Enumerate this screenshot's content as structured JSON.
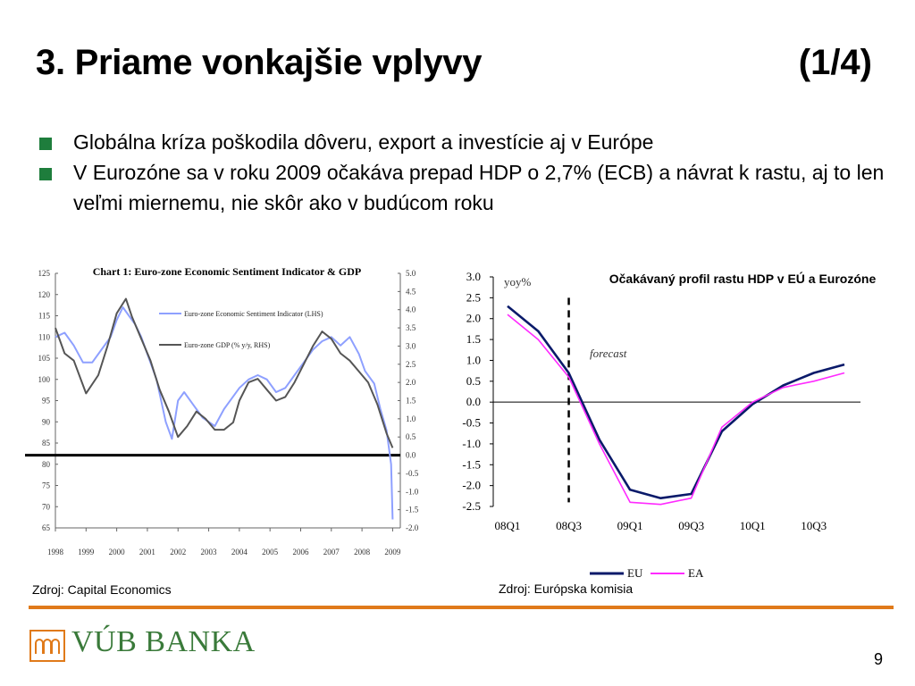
{
  "slide": {
    "title": "3. Priame vonkajšie vplyvy",
    "part": "(1/4)",
    "bullets": [
      "Globálna kríza poškodila dôveru, export a investície aj v Európe",
      "V Eurozóne sa v roku 2009 očakáva prepad HDP o 2,7% (ECB) a návrat k rastu, aj to len veľmi miernemu, nie skôr ako v budúcom roku"
    ],
    "source_left": "Zdroj: Capital Economics",
    "source_right": "Zdroj: Európska komisia",
    "logo_text": "VÚB BANKA",
    "page_number": "9",
    "colors": {
      "bullet": "#1e7d3c",
      "rule": "#e07a1a",
      "logo": "#3a7a3a"
    }
  },
  "chart_data": [
    {
      "type": "line",
      "title": "Chart 1: Euro-zone Economic Sentiment Indicator & GDP",
      "x_ticks": [
        "1998",
        "1999",
        "2000",
        "2001",
        "2002",
        "2003",
        "2004",
        "2005",
        "2006",
        "2007",
        "2008",
        "2009"
      ],
      "y_left_ticks": [
        "125",
        "120",
        "115",
        "110",
        "105",
        "100",
        "95",
        "90",
        "85",
        "80",
        "75",
        "70",
        "65"
      ],
      "y_right_ticks": [
        "5.0",
        "4.5",
        "4.0",
        "3.5",
        "3.0",
        "2.5",
        "2.0",
        "1.5",
        "1.0",
        "0.5",
        "0.0",
        "-0.5",
        "-1.0",
        "-1.5",
        "-2.0"
      ],
      "ylim_left": [
        65,
        125
      ],
      "ylim_right": [
        -2.0,
        5.0
      ],
      "reference_line_right": 0.0,
      "series": [
        {
          "name": "Euro-zone Economic Sentiment Indicator (LHS)",
          "axis": "left",
          "color": "#8ea0ff",
          "x": [
            1998.0,
            1998.3,
            1998.6,
            1998.9,
            1999.2,
            1999.5,
            1999.8,
            2000.0,
            2000.2,
            2000.4,
            2000.6,
            2000.8,
            2001.0,
            2001.3,
            2001.6,
            2001.8,
            2002.0,
            2002.2,
            2002.5,
            2002.8,
            2003.0,
            2003.2,
            2003.5,
            2003.8,
            2004.0,
            2004.3,
            2004.6,
            2004.9,
            2005.2,
            2005.5,
            2005.8,
            2006.1,
            2006.4,
            2006.7,
            2007.0,
            2007.3,
            2007.6,
            2007.9,
            2008.1,
            2008.4,
            2008.6,
            2008.8,
            2008.95,
            2009.0
          ],
          "y": [
            110,
            111,
            108,
            104,
            104,
            107,
            110,
            114,
            117,
            115,
            113,
            110,
            106,
            100,
            90,
            86,
            95,
            97,
            94,
            91,
            90,
            89,
            93,
            96,
            98,
            100,
            101,
            100,
            97,
            98,
            101,
            104,
            107,
            109,
            110,
            108,
            110,
            106,
            102,
            99,
            93,
            88,
            80,
            67
          ]
        },
        {
          "name": "Euro-zone GDP (% y/y, RHS)",
          "axis": "right",
          "color": "#555555",
          "x": [
            1998.0,
            1998.3,
            1998.6,
            1999.0,
            1999.4,
            1999.7,
            2000.0,
            2000.3,
            2000.5,
            2000.8,
            2001.1,
            2001.4,
            2001.7,
            2002.0,
            2002.3,
            2002.6,
            2002.9,
            2003.2,
            2003.5,
            2003.8,
            2004.0,
            2004.3,
            2004.6,
            2004.9,
            2005.2,
            2005.5,
            2005.8,
            2006.1,
            2006.4,
            2006.7,
            2007.0,
            2007.3,
            2007.6,
            2007.9,
            2008.2,
            2008.5,
            2008.8,
            2009.0
          ],
          "y": [
            3.5,
            2.8,
            2.6,
            1.7,
            2.2,
            3.0,
            3.9,
            4.3,
            3.8,
            3.2,
            2.6,
            1.8,
            1.2,
            0.5,
            0.8,
            1.2,
            1.0,
            0.7,
            0.7,
            0.9,
            1.5,
            2.0,
            2.1,
            1.8,
            1.5,
            1.6,
            2.0,
            2.5,
            3.0,
            3.4,
            3.2,
            2.8,
            2.6,
            2.3,
            2.0,
            1.4,
            0.6,
            0.2
          ]
        }
      ]
    },
    {
      "type": "line",
      "title": "Očakávaný profil rastu HDP v EÚ a Eurozóne",
      "ylabel": "yoy%",
      "annotation": "forecast",
      "x_labels": [
        "08Q1",
        "08Q3",
        "09Q1",
        "09Q3",
        "10Q1",
        "10Q3"
      ],
      "x": [
        "08Q1",
        "08Q2",
        "08Q3",
        "08Q4",
        "09Q1",
        "09Q2",
        "09Q3",
        "09Q4",
        "10Q1",
        "10Q2",
        "10Q3",
        "10Q4"
      ],
      "y_ticks": [
        "3.0",
        "2.5",
        "2.0",
        "1.5",
        "1.0",
        "0.5",
        "0.0",
        "-0.5",
        "-1.0",
        "-1.5",
        "-2.0",
        "-2.5"
      ],
      "ylim": [
        -2.5,
        3.0
      ],
      "forecast_start": "08Q3",
      "series": [
        {
          "name": "EU",
          "color": "#0a1a6a",
          "values": [
            2.3,
            1.7,
            0.7,
            -0.9,
            -2.1,
            -2.3,
            -2.2,
            -0.7,
            -0.05,
            0.4,
            0.7,
            0.9
          ]
        },
        {
          "name": "EA",
          "color": "#ff2aff",
          "values": [
            2.1,
            1.5,
            0.6,
            -1.0,
            -2.4,
            -2.45,
            -2.3,
            -0.6,
            0.0,
            0.35,
            0.5,
            0.7
          ]
        }
      ]
    }
  ]
}
